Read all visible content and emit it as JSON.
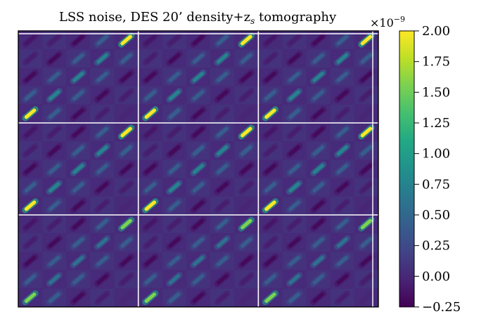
{
  "chart_data": {
    "type": "heatmap",
    "title": "LSS noise, DES 20’ density+z",
    "title_sub": "s",
    "title_tail": " tomography",
    "xlabel": "",
    "ylabel": "",
    "block_grid": {
      "rows": 3,
      "cols": 3
    },
    "sub_blocks_per_block": 5,
    "colormap": "viridis",
    "colorbar": {
      "vmin": -0.25,
      "vmax": 2.0,
      "multiplier_base": "×10",
      "multiplier_exponent": "−9",
      "tick_values": [
        2.0,
        1.75,
        1.5,
        1.25,
        1.0,
        0.75,
        0.5,
        0.25,
        0.0,
        -0.25
      ],
      "tick_labels": [
        "2.00",
        "1.75",
        "1.50",
        "1.25",
        "1.00",
        "0.75",
        "0.50",
        "0.25",
        "0.00",
        "−0.25"
      ]
    },
    "background_value": 0.0,
    "notes_peak_values": {
      "diagonal_peak": 2.0,
      "lower_blocks_peak": 1.5,
      "negative_min": -0.25
    }
  }
}
